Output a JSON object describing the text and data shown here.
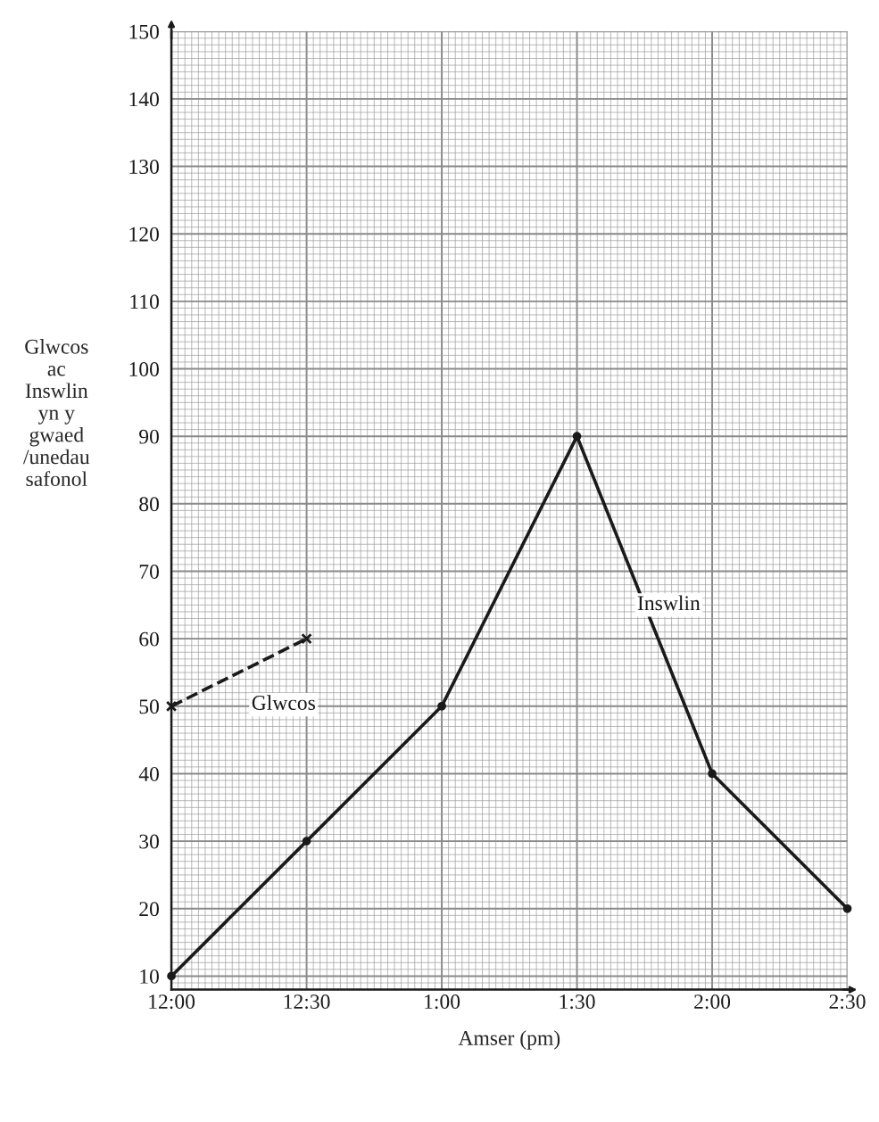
{
  "chart_data": {
    "type": "line",
    "xlabel": "Amser (pm)",
    "ylabel": "Glwcos\nac\nInswlin\nyn y\ngwaed\n/unedau\nsafonol",
    "categories": [
      "12:00",
      "12:30",
      "1:00",
      "1:30",
      "2:00",
      "2:30"
    ],
    "series": [
      {
        "name": "Inswlin",
        "color": "#1a1a1a",
        "values": [
          10,
          30,
          50,
          90,
          40,
          20
        ],
        "marker": "circle",
        "line_style": "solid"
      },
      {
        "name": "Glwcos",
        "color": "#1a1a1a",
        "values": [
          50,
          60,
          null,
          null,
          null,
          null
        ],
        "marker": "cross",
        "line_style": "dashed"
      }
    ],
    "ylim": [
      8,
      150
    ],
    "yticks": [
      10,
      20,
      30,
      40,
      50,
      60,
      70,
      80,
      90,
      100,
      110,
      120,
      130,
      140,
      150
    ],
    "grid": true
  }
}
